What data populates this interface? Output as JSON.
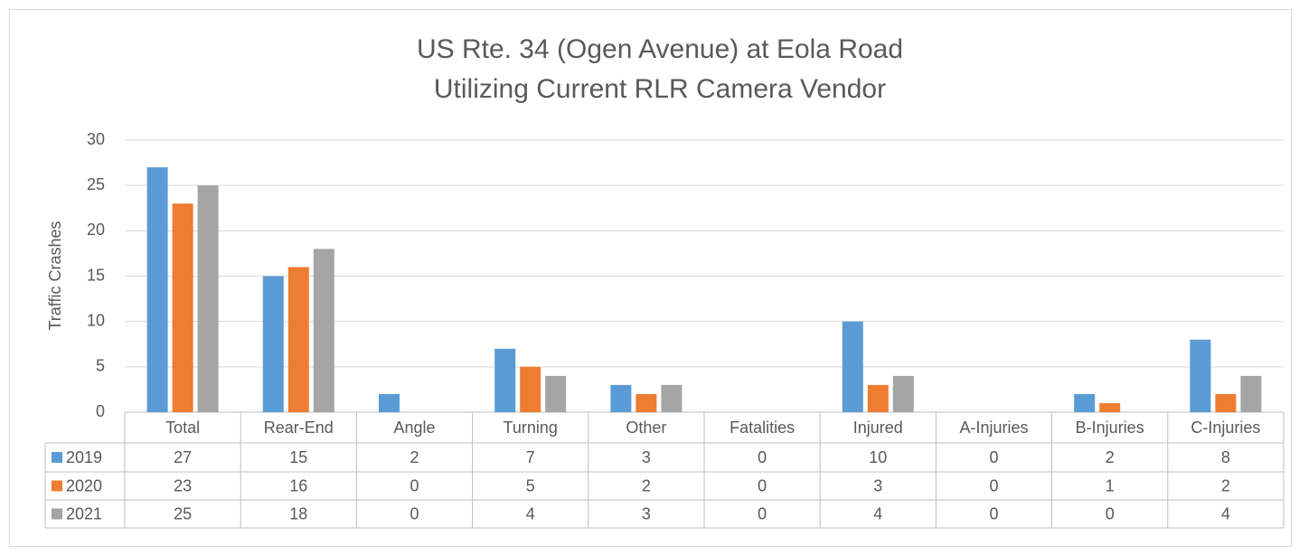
{
  "chart_data": {
    "type": "bar",
    "title": "US Rte. 34 (Ogen Avenue) at Eola Road",
    "subtitle": "Utilizing Current RLR Camera Vendor",
    "y_label": "Traffic Crashes",
    "categories": [
      "Total",
      "Rear-End",
      "Angle",
      "Turning",
      "Other",
      "Fatalities",
      "Injured",
      "A-Injuries",
      "B-Injuries",
      "C-Injuries"
    ],
    "series": [
      {
        "name": "2019",
        "color": "#5b9bd5",
        "values": [
          27,
          15,
          2,
          7,
          3,
          0,
          10,
          0,
          2,
          8
        ]
      },
      {
        "name": "2020",
        "color": "#ed7d31",
        "values": [
          23,
          16,
          0,
          5,
          2,
          0,
          3,
          0,
          1,
          2
        ]
      },
      {
        "name": "2021",
        "color": "#a5a5a5",
        "values": [
          25,
          18,
          0,
          4,
          3,
          0,
          4,
          0,
          0,
          4
        ]
      }
    ],
    "ylim": [
      0,
      30
    ],
    "yticks": [
      0,
      5,
      10,
      15,
      20,
      25,
      30
    ],
    "grid": true
  }
}
